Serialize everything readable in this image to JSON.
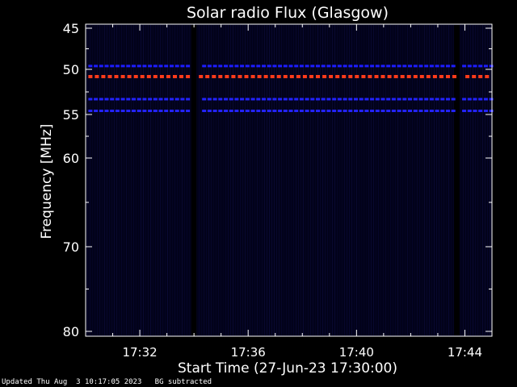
{
  "chart_data": {
    "type": "heatmap",
    "title": "Solar radio Flux (Glasgow)",
    "xlabel": "Start Time (27-Jun-23 17:30:00)",
    "ylabel": "Frequency [MHz]",
    "x_unit": "minutes after 17:30:00",
    "xlim": [
      0,
      15
    ],
    "ylim": [
      45,
      80
    ],
    "y_inverted": true,
    "grid": false,
    "x_ticks": [
      {
        "value": 2,
        "label": "17:32"
      },
      {
        "value": 6,
        "label": "17:36"
      },
      {
        "value": 10,
        "label": "17:40"
      },
      {
        "value": 14,
        "label": "17:44"
      }
    ],
    "y_ticks": [
      {
        "value": 45,
        "label": "45"
      },
      {
        "value": 50,
        "label": "50"
      },
      {
        "value": 55,
        "label": "55"
      },
      {
        "value": 60,
        "label": "60"
      },
      {
        "value": 70,
        "label": "70"
      },
      {
        "value": 80,
        "label": "80"
      }
    ],
    "data_gaps": [
      [
        3.9,
        4.1
      ],
      [
        13.6,
        13.8
      ]
    ],
    "emission_bands": [
      {
        "freq": 49.6,
        "level": "moderate",
        "color": "#1d1dff"
      },
      {
        "freq": 50.8,
        "level": "strong",
        "color": "#ff3b1a"
      },
      {
        "freq": 53.3,
        "level": "moderate",
        "color": "#2323ff"
      },
      {
        "freq": 54.6,
        "level": "moderate",
        "color": "#2323ff"
      }
    ],
    "background_color": "#02021a"
  },
  "footer": {
    "text": "Updated Thu Aug  3 10:17:05 2023   BG subtracted"
  }
}
